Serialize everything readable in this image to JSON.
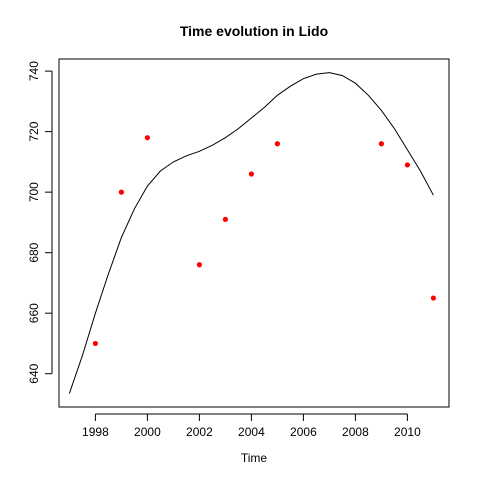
{
  "chart_data": {
    "type": "scatter",
    "title": "Time evolution in Lido",
    "xlabel": "Time",
    "ylabel": "",
    "xlim": [
      1996.6,
      2011.6
    ],
    "ylim": [
      629,
      744
    ],
    "xticks": [
      1998,
      2000,
      2002,
      2004,
      2006,
      2008,
      2010
    ],
    "yticks": [
      640,
      660,
      680,
      700,
      720,
      740
    ],
    "grid": false,
    "legend": "none",
    "colors": {
      "points": "#ff0000",
      "line": "#000000"
    },
    "series": [
      {
        "type": "scatter",
        "x": [
          1998,
          1999,
          2000,
          2002,
          2003,
          2004,
          2005,
          2009,
          2010,
          2011
        ],
        "y": [
          650,
          700,
          718,
          676,
          691,
          706,
          716,
          716,
          709,
          665
        ]
      },
      {
        "type": "line",
        "x": [
          1997,
          1997.5,
          1998,
          1998.5,
          1999,
          1999.5,
          2000,
          2000.5,
          2001,
          2001.5,
          2002,
          2002.5,
          2003,
          2003.5,
          2004,
          2004.5,
          2005,
          2005.5,
          2006,
          2006.5,
          2007,
          2007.5,
          2008,
          2008.5,
          2009,
          2009.5,
          2010,
          2010.5,
          2011
        ],
        "y": [
          633.5,
          646,
          660,
          673,
          685,
          694.5,
          702,
          707,
          710,
          712,
          713.5,
          715.5,
          718,
          721,
          724.5,
          728,
          732,
          735,
          737.5,
          739,
          739.5,
          738.5,
          736,
          732,
          727,
          721,
          714,
          707,
          699
        ]
      }
    ]
  }
}
